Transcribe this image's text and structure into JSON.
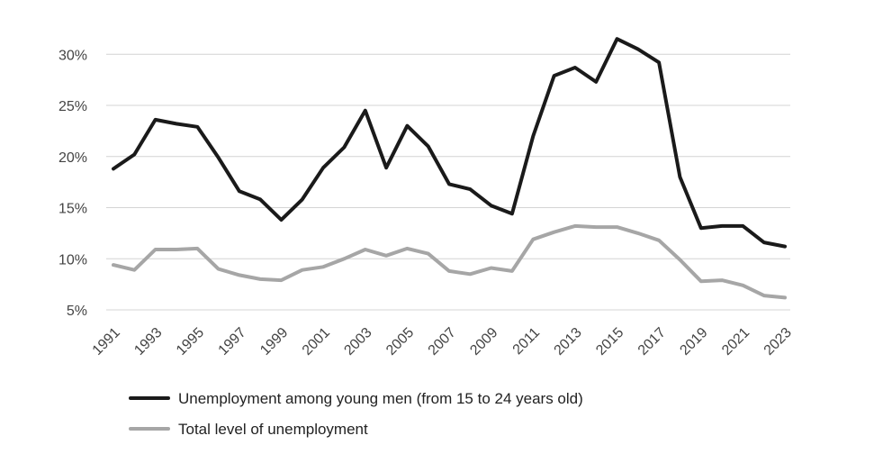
{
  "chart_data": {
    "type": "line",
    "x": [
      1991,
      1992,
      1993,
      1994,
      1995,
      1996,
      1997,
      1998,
      1999,
      2000,
      2001,
      2002,
      2003,
      2004,
      2005,
      2006,
      2007,
      2008,
      2009,
      2010,
      2011,
      2012,
      2013,
      2014,
      2015,
      2016,
      2017,
      2018,
      2019,
      2020,
      2021,
      2022,
      2023
    ],
    "x_tick_labels": [
      "1991",
      "1993",
      "1995",
      "1997",
      "1999",
      "2001",
      "2003",
      "2005",
      "2007",
      "2009",
      "2011",
      "2013",
      "2015",
      "2017",
      "2019",
      "2021",
      "2023"
    ],
    "y_tick_labels": [
      "5%",
      "10%",
      "15%",
      "20%",
      "25%",
      "30%"
    ],
    "y_ticks": [
      5,
      10,
      15,
      20,
      25,
      30
    ],
    "ylim": [
      5,
      31
    ],
    "grid": "horizontal",
    "legend_position": "bottom-left",
    "series": [
      {
        "name": "Unemployment among young men (from 15 to 24 years old)",
        "color": "#1a1a1a",
        "values": [
          18.8,
          20.2,
          23.6,
          23.2,
          22.9,
          19.9,
          16.6,
          15.8,
          13.8,
          15.8,
          18.9,
          20.9,
          24.5,
          18.9,
          23.0,
          21.0,
          17.3,
          16.8,
          15.2,
          14.4,
          22.0,
          27.9,
          28.7,
          27.3,
          31.5,
          30.5,
          29.2,
          18.0,
          13.0,
          13.2,
          13.2,
          11.6,
          11.2
        ]
      },
      {
        "name": "Total level of unemployment",
        "color": "#a6a6a6",
        "values": [
          9.4,
          8.9,
          10.9,
          10.9,
          11.0,
          9.0,
          8.4,
          8.0,
          7.9,
          8.9,
          9.2,
          10.0,
          10.9,
          10.3,
          11.0,
          10.5,
          8.8,
          8.5,
          9.1,
          8.8,
          11.9,
          12.6,
          13.2,
          13.1,
          13.1,
          12.5,
          11.8,
          9.9,
          7.8,
          7.9,
          7.4,
          6.4,
          6.2
        ]
      }
    ]
  }
}
